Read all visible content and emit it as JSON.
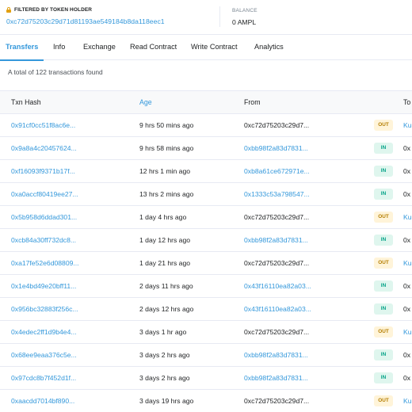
{
  "filter": {
    "label": "FILTERED BY TOKEN HOLDER",
    "address": "0xc72d75203c29d71d81193ae549184b8da118eec1",
    "balance_label": "BALANCE",
    "balance_value": "0 AMPL"
  },
  "tabs": [
    {
      "label": "Transfers",
      "active": true
    },
    {
      "label": "Info",
      "active": false
    },
    {
      "label": "Exchange",
      "active": false
    },
    {
      "label": "Read Contract",
      "active": false
    },
    {
      "label": "Write Contract",
      "active": false
    },
    {
      "label": "Analytics",
      "active": false
    }
  ],
  "summary": "A total of 122 transactions found",
  "table": {
    "headers": {
      "hash": "Txn Hash",
      "age": "Age",
      "from": "From",
      "to": "To"
    },
    "rows": [
      {
        "hash": "0x91cf0cc51f8ac6e...",
        "age": "9 hrs 50 mins ago",
        "from": "0xc72d75203c29d7...",
        "dir": "OUT",
        "to": "Ku"
      },
      {
        "hash": "0x9a8a4c20457624...",
        "age": "9 hrs 58 mins ago",
        "from": "0xbb98f2a83d7831...",
        "dir": "IN",
        "to": "0x"
      },
      {
        "hash": "0xf16093f9371b17f...",
        "age": "12 hrs 1 min ago",
        "from": "0xb8a61ce672971e...",
        "dir": "IN",
        "to": "0x"
      },
      {
        "hash": "0xa0accf80419ee27...",
        "age": "13 hrs 2 mins ago",
        "from": "0x1333c53a798547...",
        "dir": "IN",
        "to": "0x"
      },
      {
        "hash": "0x5b958d6ddad301...",
        "age": "1 day 4 hrs ago",
        "from": "0xc72d75203c29d7...",
        "dir": "OUT",
        "to": "Ku"
      },
      {
        "hash": "0xcb84a30ff732dc8...",
        "age": "1 day 12 hrs ago",
        "from": "0xbb98f2a83d7831...",
        "dir": "IN",
        "to": "0x"
      },
      {
        "hash": "0xa17fe52e6d08809...",
        "age": "1 day 21 hrs ago",
        "from": "0xc72d75203c29d7...",
        "dir": "OUT",
        "to": "Ku"
      },
      {
        "hash": "0x1e4bd49e20bff11...",
        "age": "2 days 11 hrs ago",
        "from": "0x43f16110ea82a03...",
        "dir": "IN",
        "to": "0x"
      },
      {
        "hash": "0x956bc32883f256c...",
        "age": "2 days 12 hrs ago",
        "from": "0x43f16110ea82a03...",
        "dir": "IN",
        "to": "0x"
      },
      {
        "hash": "0x4edec2ff1d9b4e4...",
        "age": "3 days 1 hr ago",
        "from": "0xc72d75203c29d7...",
        "dir": "OUT",
        "to": "Ku"
      },
      {
        "hash": "0x68ee9eaa376c5e...",
        "age": "3 days 2 hrs ago",
        "from": "0xbb98f2a83d7831...",
        "dir": "IN",
        "to": "0x"
      },
      {
        "hash": "0x97cdc8b7f452d1f...",
        "age": "3 days 2 hrs ago",
        "from": "0xbb98f2a83d7831...",
        "dir": "IN",
        "to": "0x"
      },
      {
        "hash": "0xaacdd7014bf890...",
        "age": "3 days 19 hrs ago",
        "from": "0xc72d75203c29d7...",
        "dir": "OUT",
        "to": "Ku"
      }
    ]
  }
}
